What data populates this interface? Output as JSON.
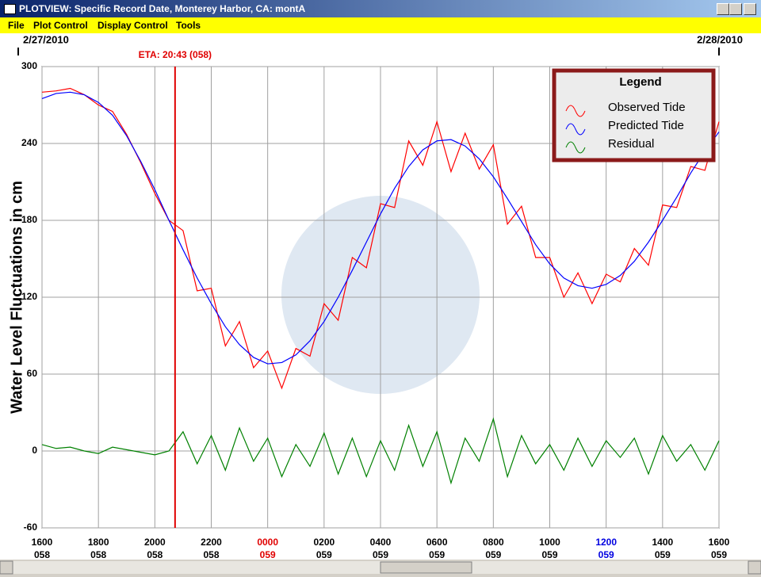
{
  "window": {
    "title": "PLOTVIEW: Specific Record Date, Monterey Harbor, CA: montA",
    "menu": [
      "File",
      "Plot Control",
      "Display Control",
      "Tools"
    ]
  },
  "chart_data": {
    "type": "line",
    "y_label": "Water Level Fluctuations in cm",
    "legend_title": "Legend",
    "legend": "upper right",
    "grid": true,
    "ylim": [
      -60,
      300
    ],
    "yticks": [
      -60,
      0,
      60,
      120,
      180,
      240,
      300
    ],
    "xlim": [
      0,
      24
    ],
    "xticks": [
      {
        "value": 0,
        "label": "1600",
        "day": "058",
        "color": "#000000"
      },
      {
        "value": 2,
        "label": "1800",
        "day": "058",
        "color": "#000000"
      },
      {
        "value": 4,
        "label": "2000",
        "day": "058",
        "color": "#000000"
      },
      {
        "value": 6,
        "label": "2200",
        "day": "058",
        "color": "#000000"
      },
      {
        "value": 8,
        "label": "0000",
        "day": "059",
        "color": "#e00000"
      },
      {
        "value": 10,
        "label": "0200",
        "day": "059",
        "color": "#000000"
      },
      {
        "value": 12,
        "label": "0400",
        "day": "059",
        "color": "#000000"
      },
      {
        "value": 14,
        "label": "0600",
        "day": "059",
        "color": "#000000"
      },
      {
        "value": 16,
        "label": "0800",
        "day": "059",
        "color": "#000000"
      },
      {
        "value": 18,
        "label": "1000",
        "day": "059",
        "color": "#000000"
      },
      {
        "value": 20,
        "label": "1200",
        "day": "059",
        "color": "#0000e0"
      },
      {
        "value": 22,
        "label": "1400",
        "day": "059",
        "color": "#000000"
      },
      {
        "value": 24,
        "label": "1600",
        "day": "059",
        "color": "#000000"
      }
    ],
    "date_labels": [
      {
        "value": 0,
        "label": "2/27/2010"
      },
      {
        "value": 24,
        "label": "2/28/2010"
      }
    ],
    "eta": {
      "x": 4.7167,
      "label": "ETA: 20:43 (058)",
      "color": "#e00000"
    },
    "x": [
      0,
      0.5,
      1,
      1.5,
      2,
      2.5,
      3,
      3.5,
      4,
      4.5,
      5,
      5.5,
      6,
      6.5,
      7,
      7.5,
      8,
      8.5,
      9,
      9.5,
      10,
      10.5,
      11,
      11.5,
      12,
      12.5,
      13,
      13.5,
      14,
      14.5,
      15,
      15.5,
      16,
      16.5,
      17,
      17.5,
      18,
      18.5,
      19,
      19.5,
      20,
      20.5,
      21,
      21.5,
      22,
      22.5,
      23,
      23.5,
      24
    ],
    "series": [
      {
        "name": "Observed Tide",
        "color": "#ff0000",
        "values": [
          280,
          281,
          283,
          278,
          270,
          265,
          247,
          225,
          201,
          180,
          172,
          125,
          127,
          82,
          101,
          65,
          78,
          49,
          80,
          74,
          115,
          102,
          151,
          143,
          193,
          190,
          242,
          223,
          257,
          218,
          248,
          220,
          239,
          177,
          191,
          151,
          151,
          120,
          139,
          115,
          138,
          132,
          158,
          145,
          192,
          190,
          222,
          219,
          257
        ]
      },
      {
        "name": "Predicted Tide",
        "color": "#0000ff",
        "values": [
          275,
          279,
          280,
          278,
          272,
          262,
          246,
          226,
          204,
          180,
          157,
          135,
          115,
          97,
          83,
          73,
          68,
          69,
          75,
          86,
          101,
          120,
          141,
          163,
          185,
          205,
          222,
          235,
          242,
          243,
          238,
          228,
          214,
          197,
          179,
          161,
          146,
          135,
          129,
          127,
          130,
          137,
          148,
          163,
          180,
          198,
          217,
          234,
          249
        ]
      },
      {
        "name": "Residual",
        "color": "#008000",
        "values": [
          5,
          2,
          3,
          0,
          -2,
          3,
          1,
          -1,
          -3,
          0,
          15,
          -10,
          12,
          -15,
          18,
          -8,
          10,
          -20,
          5,
          -12,
          14,
          -18,
          10,
          -20,
          8,
          -15,
          20,
          -12,
          15,
          -25,
          10,
          -8,
          25,
          -20,
          12,
          -10,
          5,
          -15,
          10,
          -12,
          8,
          -5,
          10,
          -18,
          12,
          -8,
          5,
          -15,
          8
        ]
      }
    ]
  }
}
